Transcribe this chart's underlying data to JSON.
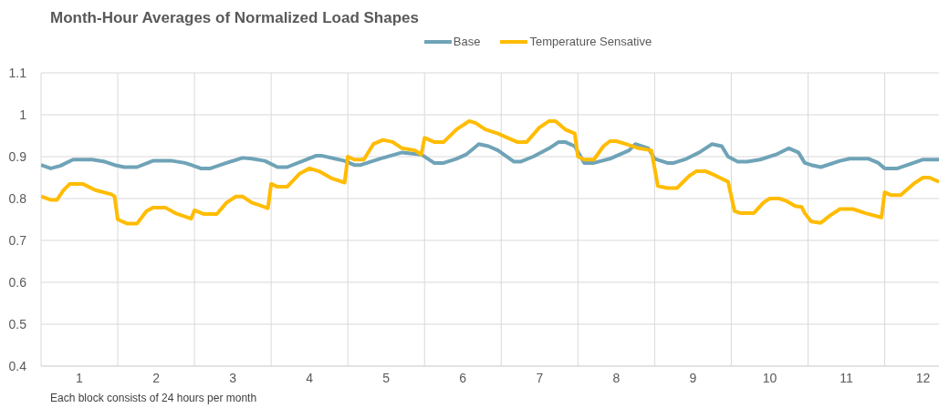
{
  "chart_data": {
    "type": "line",
    "title": "Month-Hour Averages of Normalized Load Shapes",
    "annotations": [
      "Each block consists of 24 hours per month"
    ],
    "legend": "top",
    "grid": true,
    "marker": "none",
    "line_style": "solid",
    "xlim": [
      0.5,
      12.208
    ],
    "xticks": [
      {
        "value": 0.5,
        "label": null
      },
      1,
      {
        "value": 1.5,
        "label": null
      },
      2,
      {
        "value": 2.5,
        "label": null
      },
      3,
      {
        "value": 3.5,
        "label": null
      },
      4,
      {
        "value": 4.5,
        "label": null
      },
      5,
      {
        "value": 5.5,
        "label": null
      },
      6,
      {
        "value": 6.5,
        "label": null
      },
      7,
      {
        "value": 7.5,
        "label": null
      },
      8,
      {
        "value": 8.5,
        "label": null
      },
      9,
      {
        "value": 9.5,
        "label": null
      },
      10,
      {
        "value": 10.5,
        "label": null
      },
      11,
      {
        "value": 11.5,
        "label": null
      },
      12
    ],
    "ylim": [
      0.4,
      1.1
    ],
    "yticks": [
      0.4,
      0.5,
      0.6,
      0.7,
      0.8,
      0.9,
      1,
      1.1
    ],
    "series": [
      {
        "name": "Base",
        "color": "#6fa3b7",
        "x": [
          0.5,
          0.625,
          0.75,
          0.917,
          1.167,
          1.333,
          1.458,
          1.583,
          1.75,
          1.958,
          2.208,
          2.375,
          2.458,
          2.583,
          2.708,
          2.917,
          3.125,
          3.25,
          3.417,
          3.583,
          3.708,
          3.917,
          4.083,
          4.167,
          4.333,
          4.458,
          4.583,
          4.667,
          4.917,
          5.208,
          5.458,
          5.625,
          5.75,
          5.917,
          6.042,
          6.208,
          6.333,
          6.458,
          6.667,
          6.75,
          6.917,
          7.125,
          7.25,
          7.333,
          7.458,
          7.583,
          7.708,
          7.917,
          8.167,
          8.25,
          8.417,
          8.5,
          8.667,
          8.75,
          8.917,
          9.083,
          9.25,
          9.375,
          9.458,
          9.583,
          9.708,
          9.875,
          10.083,
          10.25,
          10.375,
          10.458,
          10.542,
          10.667,
          10.917,
          11.042,
          11.292,
          11.417,
          11.5,
          11.667,
          11.875,
          12,
          12.208
        ],
        "values": [
          0.88,
          0.872,
          0.878,
          0.893,
          0.893,
          0.888,
          0.88,
          0.875,
          0.875,
          0.89,
          0.89,
          0.885,
          0.88,
          0.872,
          0.872,
          0.885,
          0.897,
          0.895,
          0.89,
          0.875,
          0.875,
          0.89,
          0.902,
          0.902,
          0.895,
          0.89,
          0.88,
          0.88,
          0.895,
          0.91,
          0.905,
          0.885,
          0.885,
          0.895,
          0.905,
          0.93,
          0.925,
          0.915,
          0.888,
          0.888,
          0.9,
          0.92,
          0.935,
          0.935,
          0.925,
          0.885,
          0.885,
          0.895,
          0.915,
          0.93,
          0.92,
          0.895,
          0.885,
          0.885,
          0.895,
          0.91,
          0.93,
          0.925,
          0.9,
          0.888,
          0.888,
          0.893,
          0.905,
          0.92,
          0.91,
          0.885,
          0.88,
          0.875,
          0.89,
          0.895,
          0.895,
          0.885,
          0.872,
          0.872,
          0.885,
          0.893,
          0.893
        ]
      },
      {
        "name": "Temperature Sensative",
        "color": "#ffbc00",
        "x": [
          0.5,
          0.625,
          0.708,
          0.792,
          0.875,
          1.042,
          1.208,
          1.417,
          1.458,
          1.5,
          1.625,
          1.75,
          1.875,
          1.958,
          2.125,
          2.25,
          2.458,
          2.5,
          2.625,
          2.792,
          2.917,
          3.042,
          3.125,
          3.25,
          3.333,
          3.458,
          3.5,
          3.583,
          3.708,
          3.875,
          4,
          4.125,
          4.292,
          4.458,
          4.5,
          4.583,
          4.708,
          4.833,
          4.958,
          5.083,
          5.208,
          5.375,
          5.458,
          5.5,
          5.625,
          5.75,
          5.917,
          6.083,
          6.167,
          6.292,
          6.458,
          6.583,
          6.708,
          6.833,
          7,
          7.125,
          7.208,
          7.333,
          7.458,
          7.5,
          7.583,
          7.708,
          7.833,
          7.917,
          8,
          8.125,
          8.292,
          8.458,
          8.542,
          8.667,
          8.792,
          8.958,
          9.042,
          9.167,
          9.292,
          9.458,
          9.542,
          9.625,
          9.792,
          9.917,
          10,
          10.125,
          10.208,
          10.333,
          10.417,
          10.458,
          10.542,
          10.667,
          10.792,
          10.917,
          11.083,
          11.25,
          11.458,
          11.5,
          11.583,
          11.708,
          11.875,
          12,
          12.083,
          12.208
        ],
        "values": [
          0.805,
          0.797,
          0.797,
          0.82,
          0.835,
          0.835,
          0.82,
          0.81,
          0.805,
          0.75,
          0.74,
          0.74,
          0.77,
          0.778,
          0.778,
          0.765,
          0.752,
          0.772,
          0.763,
          0.763,
          0.79,
          0.805,
          0.805,
          0.79,
          0.785,
          0.777,
          0.835,
          0.828,
          0.828,
          0.86,
          0.872,
          0.865,
          0.848,
          0.838,
          0.9,
          0.893,
          0.893,
          0.93,
          0.94,
          0.935,
          0.92,
          0.915,
          0.905,
          0.945,
          0.935,
          0.935,
          0.965,
          0.985,
          0.98,
          0.965,
          0.955,
          0.945,
          0.935,
          0.935,
          0.97,
          0.985,
          0.985,
          0.965,
          0.955,
          0.9,
          0.893,
          0.893,
          0.925,
          0.937,
          0.937,
          0.93,
          0.92,
          0.915,
          0.83,
          0.825,
          0.825,
          0.855,
          0.865,
          0.865,
          0.855,
          0.84,
          0.77,
          0.765,
          0.765,
          0.79,
          0.8,
          0.8,
          0.795,
          0.782,
          0.78,
          0.765,
          0.745,
          0.742,
          0.76,
          0.775,
          0.775,
          0.765,
          0.755,
          0.815,
          0.808,
          0.808,
          0.835,
          0.85,
          0.85,
          0.84
        ]
      }
    ]
  }
}
